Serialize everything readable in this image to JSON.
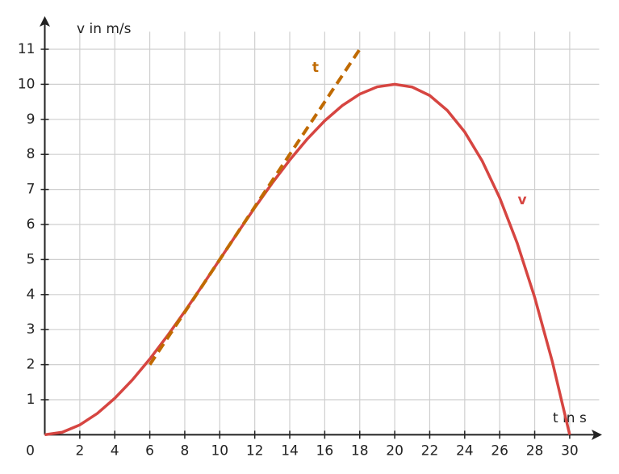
{
  "chart_data": {
    "type": "line",
    "x_label": "t in s",
    "y_label": "v in m/s",
    "xlim": [
      0,
      31.5
    ],
    "ylim": [
      0,
      11.5
    ],
    "xticks": [
      0,
      2,
      4,
      6,
      8,
      10,
      12,
      14,
      16,
      18,
      20,
      22,
      24,
      26,
      28,
      30
    ],
    "yticks": [
      1,
      2,
      3,
      4,
      5,
      6,
      7,
      8,
      9,
      10,
      11
    ],
    "grid": true,
    "series": [
      {
        "name": "v",
        "color": "#d64541",
        "dash": false,
        "x": [
          0,
          1,
          2,
          3,
          4,
          5,
          6,
          7,
          8,
          9,
          10,
          11,
          12,
          13,
          14,
          15,
          16,
          17,
          18,
          19,
          20,
          21,
          22,
          23,
          24,
          25,
          26,
          27,
          28,
          29,
          30
        ],
        "values": [
          0,
          0.0725,
          0.28,
          0.6075,
          1.04,
          1.5625,
          2.16,
          2.8175,
          3.52,
          4.2525,
          5,
          5.7475,
          6.48,
          7.1825,
          7.84,
          8.4375,
          8.96,
          9.3925,
          9.72,
          9.9275,
          10,
          9.9225,
          9.68,
          9.2575,
          8.64,
          7.8125,
          6.76,
          5.4675,
          3.92,
          2.1025,
          0
        ]
      },
      {
        "name": "t",
        "color": "#c06a00",
        "dash": true,
        "x": [
          6,
          18
        ],
        "values": [
          2,
          11
        ]
      }
    ]
  }
}
